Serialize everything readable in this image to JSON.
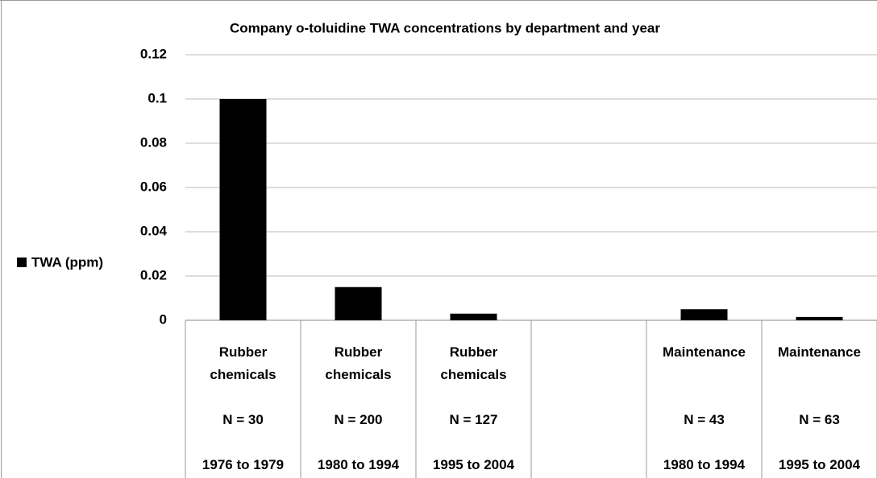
{
  "chart_data": {
    "type": "bar",
    "title": "Company o-toluidine TWA concentrations by department and year",
    "categories": [
      [
        "Rubber chemicals",
        "N = 30",
        "1976 to 1979"
      ],
      [
        "Rubber chemicals",
        "N = 200",
        "1980 to 1994"
      ],
      [
        "Rubber chemicals",
        "N = 127",
        "1995 to 2004"
      ],
      null,
      [
        "Maintenance",
        "N = 43",
        "1980 to 1994"
      ],
      [
        "Maintenance",
        "N = 63",
        "1995 to 2004"
      ]
    ],
    "series": [
      {
        "name": "TWA (ppm)",
        "color": "#000000",
        "values": [
          0.1,
          0.015,
          0.003,
          null,
          0.005,
          0.0015
        ]
      }
    ],
    "ylim": [
      0,
      0.12
    ],
    "yticks": [
      0,
      0.02,
      0.04,
      0.06,
      0.08,
      0.1,
      0.12
    ],
    "grid": true,
    "legend": "left"
  }
}
